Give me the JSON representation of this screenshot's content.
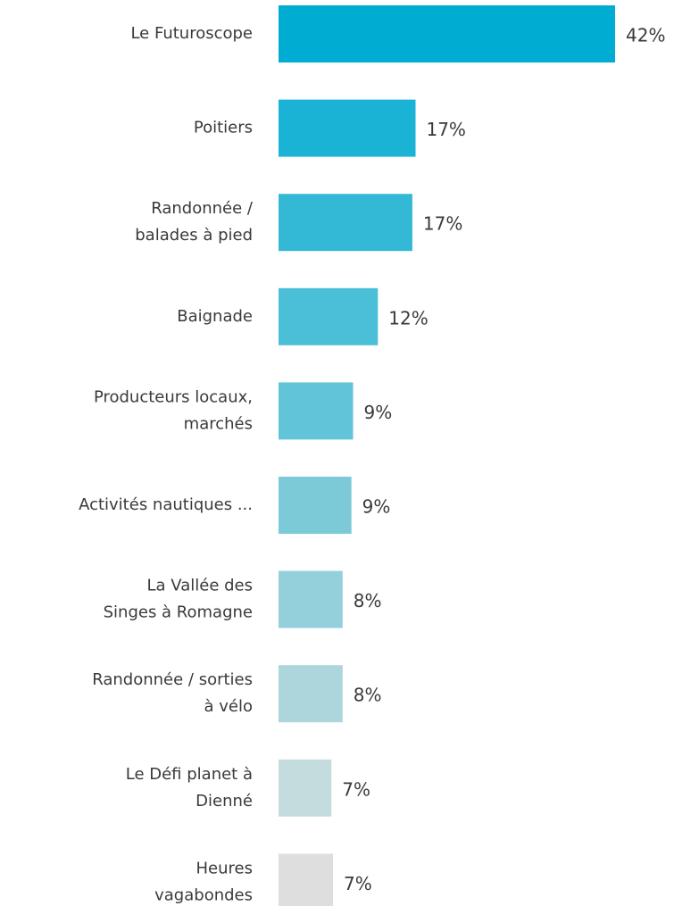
{
  "chart_data": {
    "type": "barh",
    "categories": [
      [
        "Le Futuroscope"
      ],
      [
        "Poitiers"
      ],
      [
        "Randonnée /",
        "balades à pied"
      ],
      [
        "Baignade"
      ],
      [
        "Producteurs locaux,",
        "marchés"
      ],
      [
        "Activités nautiques ..."
      ],
      [
        "La Vallée des",
        "Singes à Romagne"
      ],
      [
        "Randonnée / sorties",
        "à vélo"
      ],
      [
        "Le Défi planet à",
        "Dienné"
      ],
      [
        "Heures",
        "vagabondes"
      ]
    ],
    "values": [
      42,
      17.1,
      16.7,
      12.4,
      9.3,
      9.1,
      8.0,
      8.0,
      6.6,
      6.8
    ],
    "value_labels": [
      "42%",
      "17%",
      "17%",
      "12%",
      "9%",
      "9%",
      "8%",
      "8%",
      "7%",
      "7%"
    ],
    "colors": [
      "#00acd1",
      "#1ab2d5",
      "#33b8d6",
      "#4cbfd8",
      "#62c4d8",
      "#7ccad8",
      "#94d0dc",
      "#acd6dc",
      "#c5dcdf",
      "#dedede"
    ]
  }
}
